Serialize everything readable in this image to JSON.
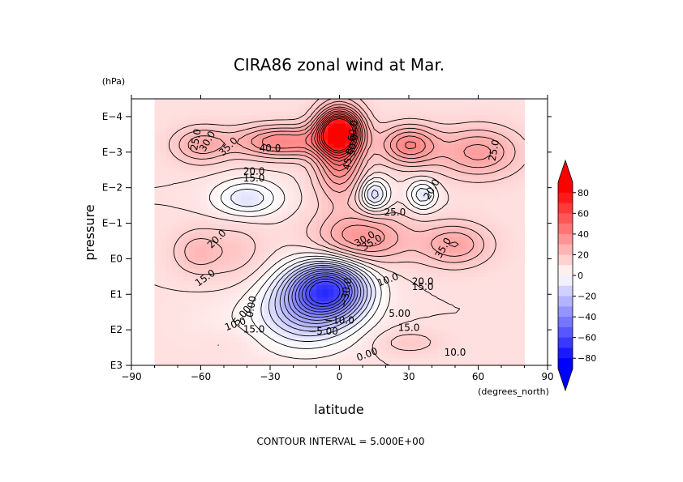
{
  "chart_data": {
    "type": "heatmap",
    "subtype": "filled contour",
    "title": "CIRA86 zonal wind at Mar.",
    "xlabel": "latitude",
    "xunits": "(degrees_north)",
    "ylabel": "pressure",
    "yunits": "(hPa)",
    "x_ticks": [
      "−90",
      "−60",
      "−30",
      "0",
      "30",
      "60",
      "90"
    ],
    "x_tick_values": [
      -90,
      -60,
      -30,
      0,
      30,
      60,
      90
    ],
    "xlim": [
      -90,
      90
    ],
    "y_ticks": [
      "E−4",
      "E−3",
      "E−2",
      "E−1",
      "E0",
      "E1",
      "E2",
      "E3"
    ],
    "y_tick_exponents": [
      -4,
      -3,
      -2,
      -1,
      0,
      1,
      2,
      3
    ],
    "ylim_log10": [
      3,
      -4.5
    ],
    "y_scale": "log",
    "data_lat_range": [
      -80,
      80
    ],
    "colorbar": {
      "ticks": [
        "80",
        "60",
        "40",
        "20",
        "0",
        "−20",
        "−40",
        "−60",
        "−80"
      ],
      "tick_values": [
        80,
        60,
        40,
        20,
        0,
        -20,
        -40,
        -60,
        -80
      ],
      "range": [
        -90,
        90
      ],
      "colors": {
        "negative_max": "#0000ff",
        "zero": "#ffffff",
        "positive_max": "#ff0000"
      }
    },
    "features": [
      {
        "lat": 0,
        "log10p": -3.6,
        "value": 70,
        "sx": 9,
        "sy": 0.55
      },
      {
        "lat": 0,
        "log10p": -3.0,
        "value": 45,
        "sx": 10,
        "sy": 1.2
      },
      {
        "lat": -25,
        "log10p": -3.3,
        "value": 40,
        "sx": 20,
        "sy": 0.45
      },
      {
        "lat": -60,
        "log10p": -3.2,
        "value": 28,
        "sx": 12,
        "sy": 0.5
      },
      {
        "lat": 60,
        "log10p": -3.0,
        "value": 32,
        "sx": 18,
        "sy": 0.7
      },
      {
        "lat": 30,
        "log10p": -3.2,
        "value": 40,
        "sx": 12,
        "sy": 0.55
      },
      {
        "lat": -40,
        "log10p": -1.7,
        "value": -10,
        "sx": 14,
        "sy": 0.5
      },
      {
        "lat": 15,
        "log10p": -1.8,
        "value": -15,
        "sx": 6,
        "sy": 0.45
      },
      {
        "lat": 36,
        "log10p": -1.8,
        "value": -10,
        "sx": 6,
        "sy": 0.4
      },
      {
        "lat": 10,
        "log10p": -0.6,
        "value": 35,
        "sx": 20,
        "sy": 0.7
      },
      {
        "lat": 50,
        "log10p": -0.4,
        "value": 30,
        "sx": 15,
        "sy": 0.6
      },
      {
        "lat": -45,
        "log10p": -0.2,
        "value": 18,
        "sx": 14,
        "sy": 0.9
      },
      {
        "lat": -62,
        "log10p": -0.2,
        "value": 22,
        "sx": 10,
        "sy": 0.6
      },
      {
        "lat": -5,
        "log10p": 0.85,
        "value": -55,
        "sx": 16,
        "sy": 0.75
      },
      {
        "lat": -15,
        "log10p": 1.5,
        "value": -18,
        "sx": 22,
        "sy": 1.0
      },
      {
        "lat": 30,
        "log10p": 2.35,
        "value": 18,
        "sx": 14,
        "sy": 0.35
      },
      {
        "lat": -45,
        "log10p": 2.3,
        "value": 12,
        "sx": 14,
        "sy": 0.35
      },
      {
        "lat": 60,
        "log10p": 1.6,
        "value": 10,
        "sx": 20,
        "sy": 0.6
      },
      {
        "lat": -55,
        "log10p": 1.7,
        "value": 8,
        "sx": 18,
        "sy": 0.7
      }
    ],
    "contour_interval": 5,
    "footer": "CONTOUR INTERVAL = 5.000E+00",
    "contour_labels": [
      {
        "text": "25.0",
        "lat": -62,
        "log10p": -3.35,
        "rot": -80
      },
      {
        "text": "30.0",
        "lat": -57,
        "log10p": -3.3,
        "rot": -60
      },
      {
        "text": "35.0",
        "lat": -48,
        "log10p": -3.15,
        "rot": -45
      },
      {
        "text": "40.0",
        "lat": -30,
        "log10p": -3.1,
        "rot": 0
      },
      {
        "text": "45.0",
        "lat": 4,
        "log10p": -2.8,
        "rot": -80
      },
      {
        "text": "50.0",
        "lat": 6,
        "log10p": -3.2,
        "rot": -80
      },
      {
        "text": "60.0",
        "lat": 6,
        "log10p": -3.6,
        "rot": -80
      },
      {
        "text": "20.0",
        "lat": -37,
        "log10p": -2.45,
        "rot": 0
      },
      {
        "text": "15.0",
        "lat": -37,
        "log10p": -2.25,
        "rot": 0
      },
      {
        "text": "25.0",
        "lat": 67,
        "log10p": -3.05,
        "rot": -80
      },
      {
        "text": "20.0",
        "lat": 40,
        "log10p": -1.95,
        "rot": -60
      },
      {
        "text": "25.0",
        "lat": 24,
        "log10p": -1.3,
        "rot": 0
      },
      {
        "text": "30.0",
        "lat": 11,
        "log10p": -0.55,
        "rot": -30
      },
      {
        "text": "35.0",
        "lat": 14,
        "log10p": -0.45,
        "rot": -30
      },
      {
        "text": "35.0",
        "lat": 45,
        "log10p": -0.3,
        "rot": -60
      },
      {
        "text": "20.0",
        "lat": -53,
        "log10p": -0.55,
        "rot": -45
      },
      {
        "text": "15.0",
        "lat": -58,
        "log10p": 0.55,
        "rot": -35
      },
      {
        "text": "10.0",
        "lat": 21,
        "log10p": 0.6,
        "rot": -20
      },
      {
        "text": "15.0",
        "lat": 36,
        "log10p": 0.8,
        "rot": 0
      },
      {
        "text": "20.0",
        "lat": 36,
        "log10p": 0.65,
        "rot": 0
      },
      {
        "text": "0.00",
        "lat": -38,
        "log10p": 1.35,
        "rot": -80
      },
      {
        "text": "5.00",
        "lat": -42,
        "log10p": 1.6,
        "rot": -50
      },
      {
        "text": "10.0",
        "lat": -45,
        "log10p": 1.85,
        "rot": -20
      },
      {
        "text": "15.0",
        "lat": -37,
        "log10p": 2.0,
        "rot": 0
      },
      {
        "text": "−10.0",
        "lat": 0,
        "log10p": 1.75,
        "rot": 0
      },
      {
        "text": "−5.00",
        "lat": -7,
        "log10p": 2.05,
        "rot": 0
      },
      {
        "text": "−30.0",
        "lat": 3,
        "log10p": 0.95,
        "rot": -80
      },
      {
        "text": "5.00",
        "lat": 26,
        "log10p": 1.55,
        "rot": 0
      },
      {
        "text": "15.0",
        "lat": 30,
        "log10p": 1.95,
        "rot": 0
      },
      {
        "text": "10.0",
        "lat": 50,
        "log10p": 2.65,
        "rot": 0
      },
      {
        "text": "0.00",
        "lat": 12,
        "log10p": 2.7,
        "rot": -20
      }
    ]
  }
}
